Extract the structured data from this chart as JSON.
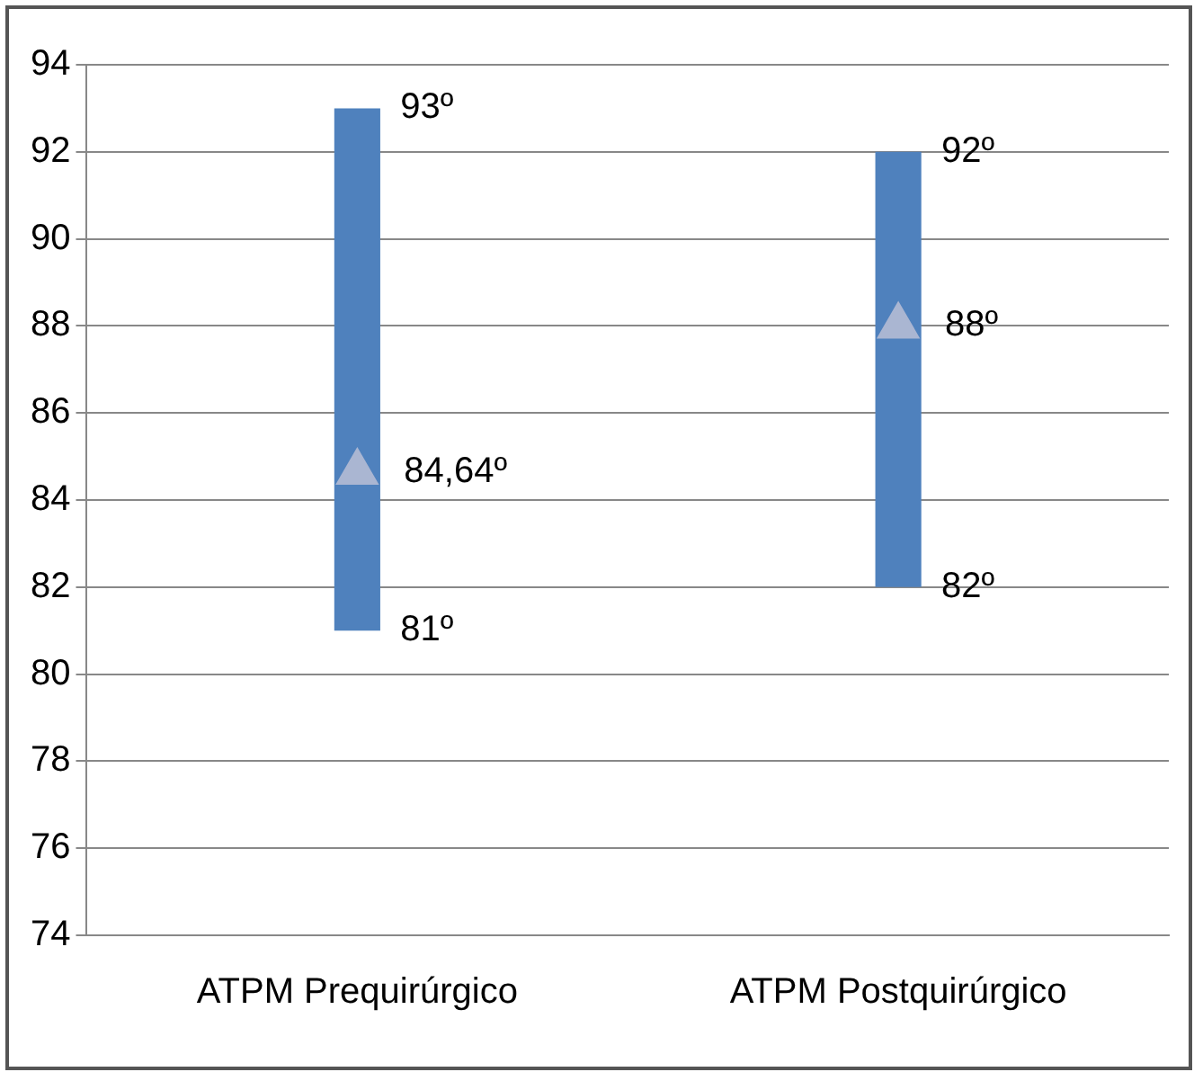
{
  "chart_data": {
    "type": "bar",
    "categories": [
      "ATPM Prequirúrgico",
      "ATPM Postquirúrgico"
    ],
    "series": [
      {
        "color": "#4f81bd",
        "base": [
          81,
          82
        ],
        "values": [
          12,
          10
        ]
      },
      {
        "type": "scatter",
        "color": "#aab6d2",
        "marker": "triangle",
        "x": [
          "ATPM Prequirúrgico",
          "ATPM Postquirúrgico"
        ],
        "values": [
          84.64,
          88
        ],
        "value_labels": [
          "84,64º",
          "88º"
        ]
      }
    ],
    "ylim": [
      74,
      94
    ],
    "yticks": [
      74,
      76,
      78,
      80,
      82,
      84,
      86,
      88,
      90,
      92,
      94
    ],
    "grid": "y",
    "annotations": [
      {
        "text": "93º",
        "x": "ATPM Prequirúrgico",
        "y": 93
      },
      {
        "text": "81º",
        "x": "ATPM Prequirúrgico",
        "y": 81
      },
      {
        "text": "92º",
        "x": "ATPM Postquirúrgico",
        "y": 92
      },
      {
        "text": "82º",
        "x": "ATPM Postquirúrgico",
        "y": 82
      }
    ]
  }
}
